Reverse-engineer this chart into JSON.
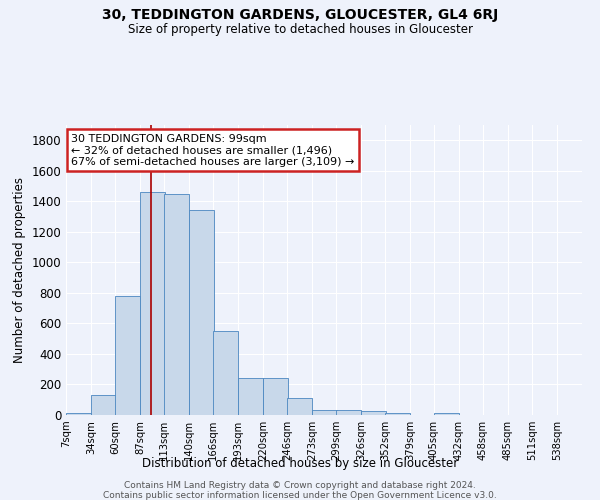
{
  "title1": "30, TEDDINGTON GARDENS, GLOUCESTER, GL4 6RJ",
  "title2": "Size of property relative to detached houses in Gloucester",
  "xlabel": "Distribution of detached houses by size in Gloucester",
  "ylabel": "Number of detached properties",
  "annotation_line1": "30 TEDDINGTON GARDENS: 99sqm",
  "annotation_line2": "← 32% of detached houses are smaller (1,496)",
  "annotation_line3": "67% of semi-detached houses are larger (3,109) →",
  "property_size_sqm": 99,
  "categories": [
    "7sqm",
    "34sqm",
    "60sqm",
    "87sqm",
    "113sqm",
    "140sqm",
    "166sqm",
    "193sqm",
    "220sqm",
    "246sqm",
    "273sqm",
    "299sqm",
    "326sqm",
    "352sqm",
    "379sqm",
    "405sqm",
    "432sqm",
    "458sqm",
    "485sqm",
    "511sqm",
    "538sqm"
  ],
  "bin_edges": [
    7,
    34,
    60,
    87,
    113,
    140,
    166,
    193,
    220,
    246,
    273,
    299,
    326,
    352,
    379,
    405,
    432,
    458,
    485,
    511,
    538
  ],
  "values": [
    15,
    130,
    780,
    1460,
    1450,
    1340,
    550,
    240,
    240,
    110,
    30,
    35,
    25,
    15,
    0,
    15,
    0,
    0,
    0,
    0,
    0
  ],
  "bar_color": "#c8d8ea",
  "bar_edge_color": "#4a86c0",
  "vline_color": "#aa0000",
  "vline_x": 99,
  "annotation_box_color": "#ffffff",
  "annotation_box_edge_color": "#cc2222",
  "background_color": "#eef2fb",
  "grid_color": "#ffffff",
  "ylim": [
    0,
    1900
  ],
  "yticks": [
    0,
    200,
    400,
    600,
    800,
    1000,
    1200,
    1400,
    1600,
    1800
  ],
  "footnote1": "Contains HM Land Registry data © Crown copyright and database right 2024.",
  "footnote2": "Contains public sector information licensed under the Open Government Licence v3.0."
}
